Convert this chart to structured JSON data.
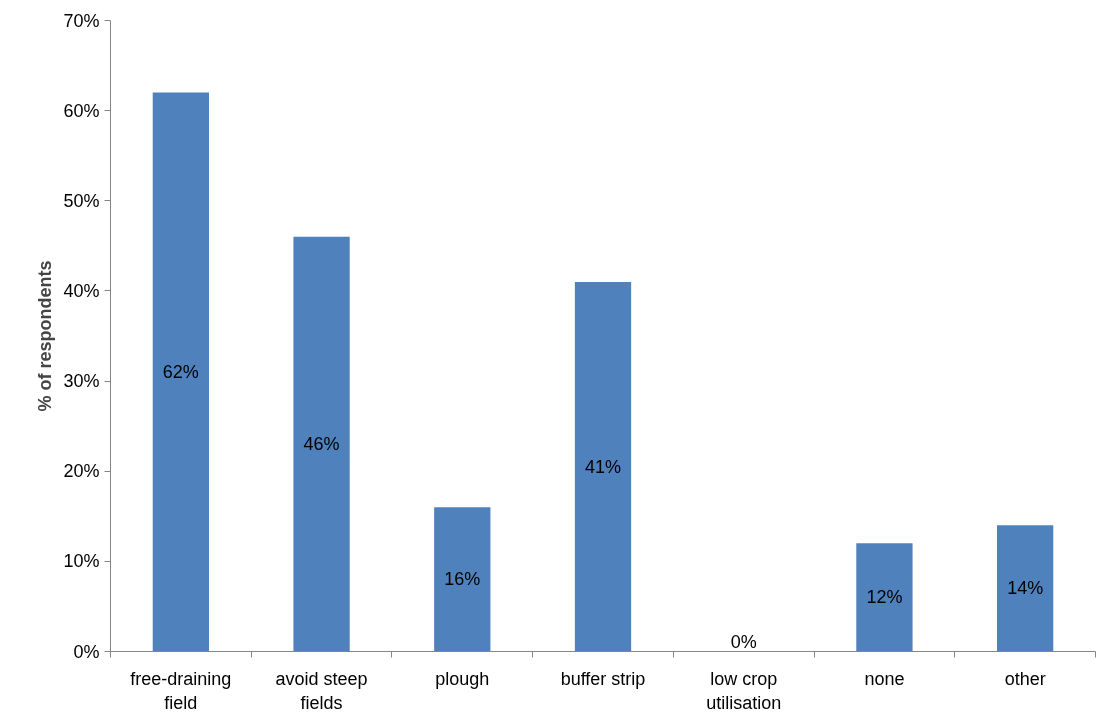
{
  "chart_data": {
    "type": "bar",
    "ylabel": "% of respondents",
    "categories": [
      "free-draining field",
      "avoid steep fields",
      "plough",
      "buffer strip",
      "low crop utilisation",
      "none",
      "other"
    ],
    "values": [
      62,
      46,
      16,
      41,
      0,
      12,
      14
    ],
    "color": "#4f81bd",
    "ylim": [
      0,
      70
    ],
    "yticks": [
      {
        "value": 0,
        "label": "0%"
      },
      {
        "value": 10,
        "label": "10%"
      },
      {
        "value": 20,
        "label": "20%"
      },
      {
        "value": 30,
        "label": "30%"
      },
      {
        "value": 40,
        "label": "40%"
      },
      {
        "value": 50,
        "label": "50%"
      },
      {
        "value": 60,
        "label": "60%"
      },
      {
        "value": 70,
        "label": "70%"
      }
    ],
    "value_labels": [
      "62%",
      "46%",
      "16%",
      "41%",
      "0%",
      "12%",
      "14%"
    ],
    "grid": false
  }
}
